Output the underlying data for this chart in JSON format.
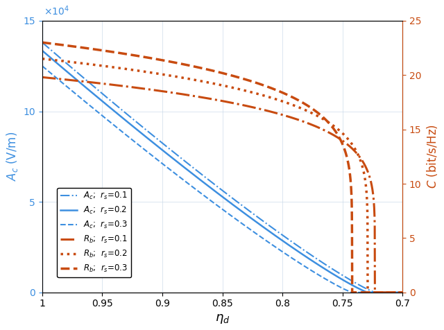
{
  "xlabel": "$\\eta_d$",
  "ylabel_left": "$A_c$ (V/m)",
  "ylabel_right": "$C$ (bit/s/Hz)",
  "xlim": [
    0.7,
    1.0
  ],
  "ylim_left": [
    0,
    150000
  ],
  "ylim_right": [
    0,
    25
  ],
  "color_blue": "#3d8fe0",
  "color_orange": "#c84b10",
  "params": {
    "0.1": {
      "Ac_max": 138000,
      "eta_c": 0.723,
      "Rb_max": 19.8,
      "Rb_flat": 19.8
    },
    "0.2": {
      "Ac_max": 133500,
      "eta_c": 0.729,
      "Rb_max": 21.5,
      "Rb_flat": 21.5
    },
    "0.3": {
      "Ac_max": 125000,
      "eta_c": 0.742,
      "Rb_max": 23.0,
      "Rb_flat": 23.0
    }
  },
  "n_points": 2000,
  "eta_min": 0.7,
  "eta_max": 1.0
}
